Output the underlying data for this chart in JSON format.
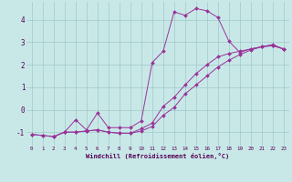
{
  "xlabel": "Windchill (Refroidissement éolien,°C)",
  "bg_color": "#c8e8e8",
  "grid_color": "#a0c8c8",
  "line_color": "#993399",
  "xlim": [
    -0.5,
    23.5
  ],
  "ylim": [
    -1.6,
    4.8
  ],
  "yticks": [
    -1,
    0,
    1,
    2,
    3,
    4
  ],
  "xticks": [
    0,
    1,
    2,
    3,
    4,
    5,
    6,
    7,
    8,
    9,
    10,
    11,
    12,
    13,
    14,
    15,
    16,
    17,
    18,
    19,
    20,
    21,
    22,
    23
  ],
  "series1_x": [
    0,
    1,
    2,
    3,
    4,
    5,
    6,
    7,
    8,
    9,
    10,
    11,
    12,
    13,
    14,
    15,
    16,
    17,
    18,
    19,
    20,
    21,
    22,
    23
  ],
  "series1_y": [
    -1.1,
    -1.15,
    -1.2,
    -1.0,
    -1.0,
    -0.95,
    -0.9,
    -1.0,
    -1.05,
    -1.05,
    -0.85,
    -0.6,
    0.15,
    0.55,
    1.1,
    1.6,
    2.0,
    2.35,
    2.5,
    2.6,
    2.7,
    2.8,
    2.85,
    2.7
  ],
  "series2_x": [
    0,
    1,
    2,
    3,
    4,
    5,
    6,
    7,
    8,
    9,
    10,
    11,
    12,
    13,
    14,
    15,
    16,
    17,
    18,
    19,
    20,
    21,
    22,
    23
  ],
  "series2_y": [
    -1.1,
    -1.15,
    -1.2,
    -1.0,
    -1.0,
    -0.95,
    -0.9,
    -1.0,
    -1.05,
    -1.05,
    -0.95,
    -0.75,
    -0.25,
    0.1,
    0.7,
    1.1,
    1.5,
    1.9,
    2.2,
    2.45,
    2.65,
    2.8,
    2.9,
    2.7
  ],
  "series3_x": [
    2,
    3,
    4,
    5,
    6,
    7,
    8,
    9,
    10,
    11,
    12,
    13,
    14,
    15,
    16,
    17,
    18,
    19,
    20,
    21,
    22,
    23
  ],
  "series3_y": [
    -1.2,
    -1.0,
    -0.45,
    -0.9,
    -0.15,
    -0.8,
    -0.8,
    -0.8,
    -0.5,
    2.1,
    2.6,
    4.35,
    4.2,
    4.5,
    4.4,
    4.1,
    3.05,
    2.55,
    2.7,
    2.8,
    2.85,
    2.7
  ]
}
